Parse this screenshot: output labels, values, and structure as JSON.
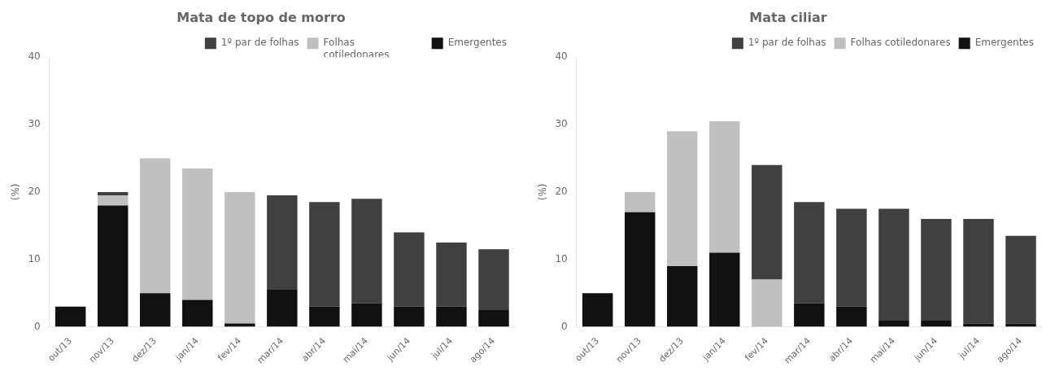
{
  "chart_data": [
    {
      "type": "bar",
      "stacked": true,
      "title": "Mata de topo de morro",
      "ylabel": "(%)",
      "categories": [
        "out/13",
        "nov/13",
        "dez/13",
        "jan/14",
        "fev/14",
        "mar/14",
        "abr/14",
        "mai/14",
        "jun/14",
        "jul/14",
        "ago/14"
      ],
      "series": [
        {
          "name": "Emergentes",
          "color": "#111111",
          "values": [
            3.0,
            18.0,
            5.0,
            4.0,
            0.5,
            5.5,
            3.0,
            3.5,
            3.0,
            3.0,
            2.5
          ]
        },
        {
          "name": "Folhas\ncotiledonares",
          "color": "#c0c0c0",
          "values": [
            0.0,
            1.5,
            20.0,
            19.5,
            19.5,
            0.0,
            0.0,
            0.0,
            0.0,
            0.0,
            0.0
          ]
        },
        {
          "name": "1º par de folhas",
          "color": "#404040",
          "values": [
            0.0,
            0.5,
            0.0,
            0.0,
            0.0,
            14.0,
            15.5,
            15.5,
            11.0,
            9.5,
            9.0
          ]
        }
      ],
      "ylim": [
        0,
        40
      ],
      "yticks": [
        0,
        10,
        20,
        30,
        40
      ],
      "grid": false,
      "legend": "upper right"
    },
    {
      "type": "bar",
      "stacked": true,
      "title": "Mata ciliar",
      "ylabel": "(%)",
      "categories": [
        "out/13",
        "nov/13",
        "dez/13",
        "jan/14",
        "fev/14",
        "mar/14",
        "abr/14",
        "mai/14",
        "jun/14",
        "jul/14",
        "ago/14"
      ],
      "series": [
        {
          "name": "Emergentes",
          "color": "#111111",
          "values": [
            5.0,
            17.0,
            9.0,
            11.0,
            0.0,
            3.5,
            3.0,
            1.0,
            1.0,
            0.5,
            0.5
          ]
        },
        {
          "name": "Folhas cotiledonares",
          "color": "#c0c0c0",
          "values": [
            0.0,
            3.0,
            20.0,
            19.5,
            7.0,
            0.0,
            0.0,
            0.0,
            0.0,
            0.0,
            0.0
          ]
        },
        {
          "name": "1º par de folhas",
          "color": "#404040",
          "values": [
            0.0,
            0.0,
            0.0,
            0.0,
            17.0,
            15.0,
            14.5,
            16.5,
            15.0,
            15.5,
            13.0
          ]
        }
      ],
      "ylim": [
        0,
        40
      ],
      "yticks": [
        0,
        10,
        20,
        30,
        40
      ],
      "grid": false,
      "legend": "upper right"
    }
  ]
}
